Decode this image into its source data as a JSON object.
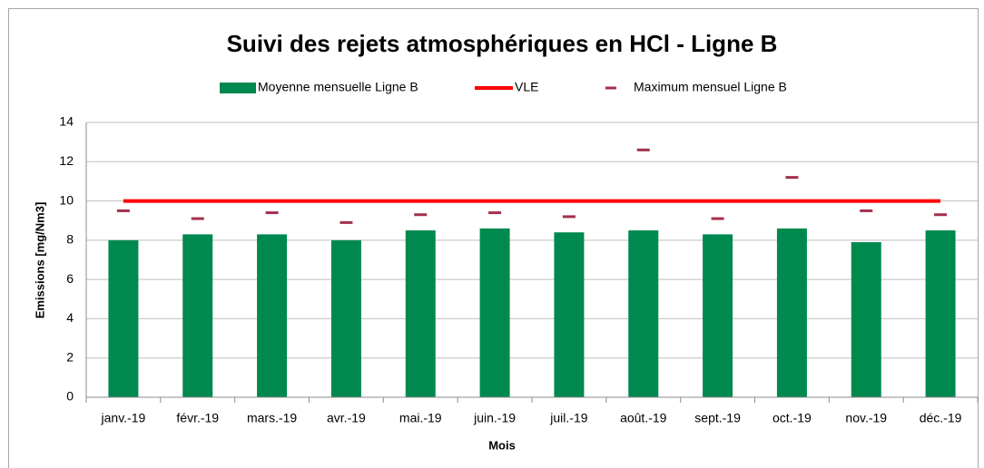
{
  "chart_data": {
    "type": "bar",
    "title": "Suivi des rejets atmosphériques en HCl - Ligne B",
    "x_label": "Mois",
    "y_label": "Emissions [mg/Nm3]",
    "categories": [
      "janv.-19",
      "févr.-19",
      "mars.-19",
      "avr.-19",
      "mai.-19",
      "juin.-19",
      "juil.-19",
      "août.-19",
      "sept.-19",
      "oct.-19",
      "nov.-19",
      "déc.-19"
    ],
    "series": [
      {
        "name": "Moyenne mensuelle Ligne B",
        "type": "bar",
        "color": "#00894f",
        "values": [
          8.0,
          8.3,
          8.3,
          8.0,
          8.5,
          8.6,
          8.4,
          8.5,
          8.3,
          8.6,
          7.9,
          8.5
        ]
      },
      {
        "name": "VLE",
        "type": "line",
        "color": "#ff0000",
        "values": [
          10,
          10,
          10,
          10,
          10,
          10,
          10,
          10,
          10,
          10,
          10,
          10
        ]
      },
      {
        "name": "Maximum mensuel Ligne B",
        "type": "marker",
        "color": "#a3304b",
        "values": [
          9.5,
          9.1,
          9.4,
          8.9,
          9.3,
          9.4,
          9.2,
          12.6,
          9.1,
          11.2,
          9.5,
          9.3
        ]
      }
    ],
    "ylim": [
      0,
      14
    ],
    "yticks": [
      0,
      2,
      4,
      6,
      8,
      10,
      12,
      14
    ],
    "grid": true,
    "legend": "top"
  }
}
